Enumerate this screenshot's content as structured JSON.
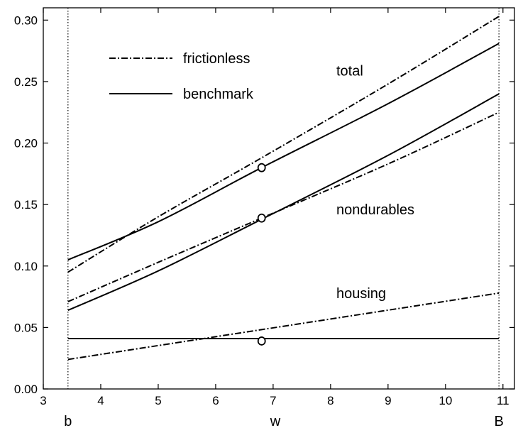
{
  "chart_data": {
    "type": "line",
    "title": "",
    "xlabel": "w",
    "ylabel": "",
    "xlim": [
      3,
      11.2
    ],
    "ylim": [
      0,
      0.31
    ],
    "xticks": [
      3,
      4,
      5,
      6,
      7,
      8,
      9,
      10,
      11
    ],
    "yticks": [
      0.0,
      0.05,
      0.1,
      0.15,
      0.2,
      0.25,
      0.3
    ],
    "xtick_labels": [
      "3",
      "4",
      "5",
      "6",
      "7",
      "8",
      "9",
      "10",
      "11"
    ],
    "ytick_labels": [
      "0.00",
      "0.05",
      "0.10",
      "0.15",
      "0.20",
      "0.25",
      "0.30"
    ],
    "grid": false,
    "legend": {
      "position": "top-left",
      "entries": [
        {
          "label": "frictionless",
          "style": "dashdot"
        },
        {
          "label": "benchmark",
          "style": "solid"
        }
      ]
    },
    "bounds": [
      {
        "label": "b",
        "x": 3.43
      },
      {
        "label": "B",
        "x": 10.93
      }
    ],
    "group_labels": [
      {
        "text": "total",
        "x": 8.1,
        "y": 0.255
      },
      {
        "text": "nondurables",
        "x": 8.1,
        "y": 0.142
      },
      {
        "text": "housing",
        "x": 8.1,
        "y": 0.074
      }
    ],
    "series": [
      {
        "group": "total",
        "style": "dashdot",
        "x": [
          3.43,
          5.0,
          6.8,
          9.0,
          10.93
        ],
        "y": [
          0.095,
          0.14,
          0.188,
          0.248,
          0.303
        ]
      },
      {
        "group": "total",
        "style": "solid",
        "x": [
          3.43,
          5.0,
          6.8,
          9.0,
          10.93
        ],
        "y": [
          0.105,
          0.136,
          0.18,
          0.232,
          0.281
        ]
      },
      {
        "group": "nondurables",
        "style": "dashdot",
        "x": [
          3.43,
          5.0,
          6.8,
          9.0,
          10.93
        ],
        "y": [
          0.071,
          0.103,
          0.139,
          0.183,
          0.225
        ]
      },
      {
        "group": "nondurables",
        "style": "solid",
        "x": [
          3.43,
          5.0,
          6.8,
          9.0,
          10.93
        ],
        "y": [
          0.064,
          0.096,
          0.138,
          0.19,
          0.24
        ]
      },
      {
        "group": "housing",
        "style": "dashdot",
        "x": [
          3.43,
          10.93
        ],
        "y": [
          0.024,
          0.078
        ]
      },
      {
        "group": "housing",
        "style": "solid",
        "x": [
          3.43,
          10.93
        ],
        "y": [
          0.041,
          0.041
        ]
      }
    ],
    "markers": [
      {
        "x": 6.8,
        "y": 0.18
      },
      {
        "x": 6.8,
        "y": 0.139
      },
      {
        "x": 6.8,
        "y": 0.039
      }
    ]
  }
}
